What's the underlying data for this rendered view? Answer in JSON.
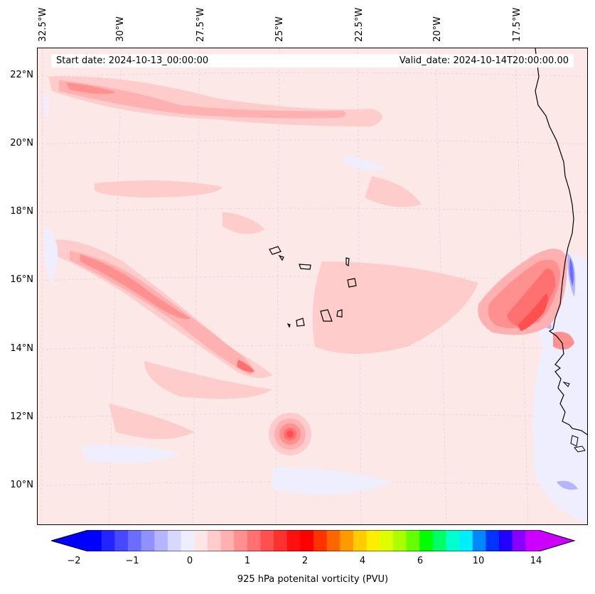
{
  "header": {
    "start_text": "Start date: 2024-10-13_00:00:00",
    "valid_text": "Valid_date: 2024-10-14T20:00:00.00"
  },
  "lon_labels": [
    "32.5°W",
    "30°W",
    "27.5°W",
    "25°W",
    "22.5°W",
    "20°W",
    "17.5°W"
  ],
  "lat_labels": [
    "22°N",
    "20°N",
    "18°N",
    "16°N",
    "14°N",
    "12°N",
    "10°N"
  ],
  "colorbar": {
    "title": "925 hPa potenital vorticity (PVU)",
    "ticks": [
      "−2",
      "−1",
      "0",
      "1",
      "2",
      "4",
      "6",
      "10",
      "14"
    ],
    "colors": [
      "#0000ff",
      "#2424ff",
      "#4848ff",
      "#6c6cff",
      "#9090ff",
      "#b4b4ff",
      "#d8d8ff",
      "#eeeeff",
      "#ffe6e6",
      "#ffcccc",
      "#ffb0b0",
      "#ff9090",
      "#ff7070",
      "#ff5050",
      "#ff3030",
      "#ff1010",
      "#ff0000",
      "#ff3300",
      "#ff6600",
      "#ff9900",
      "#ffcc00",
      "#ffee00",
      "#ddff00",
      "#aaff00",
      "#66ff00",
      "#00ff00",
      "#00ff66",
      "#00ffcc",
      "#00eeff",
      "#0088ff",
      "#0033ff",
      "#2200ff",
      "#8800ff",
      "#cc00ff"
    ],
    "under_color": "#0000ff",
    "over_color": "#cc00ff"
  }
}
